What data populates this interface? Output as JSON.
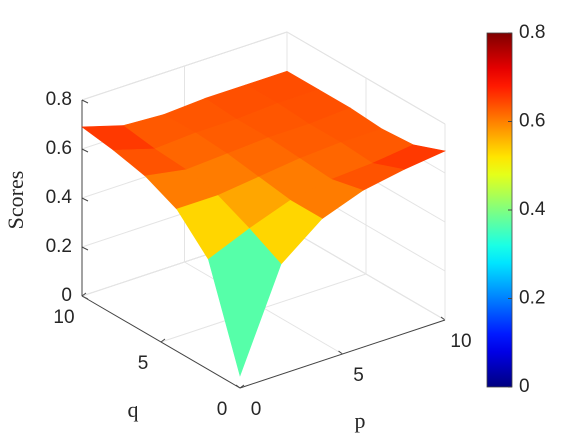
{
  "chart_data": {
    "type": "surface",
    "x": [
      0,
      2,
      4,
      6,
      8,
      10
    ],
    "y": [
      0,
      2,
      4,
      6,
      8,
      10
    ],
    "z": [
      [
        0.05,
        0.45,
        0.58,
        0.64,
        0.67,
        0.69
      ],
      [
        0.45,
        0.52,
        0.58,
        0.61,
        0.62,
        0.64
      ],
      [
        0.58,
        0.58,
        0.6,
        0.62,
        0.63,
        0.63
      ],
      [
        0.64,
        0.61,
        0.62,
        0.63,
        0.63,
        0.64
      ],
      [
        0.67,
        0.62,
        0.63,
        0.63,
        0.64,
        0.64
      ],
      [
        0.69,
        0.64,
        0.63,
        0.64,
        0.64,
        0.64
      ]
    ],
    "xlabel": "p",
    "ylabel": "q",
    "zlabel": "Scores",
    "xlim": [
      0,
      10
    ],
    "ylim": [
      0,
      10
    ],
    "zlim": [
      0,
      0.8
    ],
    "xticks": [
      0,
      5,
      10
    ],
    "yticks": [
      0,
      5,
      10
    ],
    "zticks": [
      0,
      0.2,
      0.4,
      0.6,
      0.8
    ],
    "colormap": "jet",
    "grid": true,
    "colorbar": {
      "lim": [
        0,
        0.8
      ],
      "ticks": [
        0,
        0.2,
        0.4,
        0.6,
        0.8
      ]
    }
  }
}
